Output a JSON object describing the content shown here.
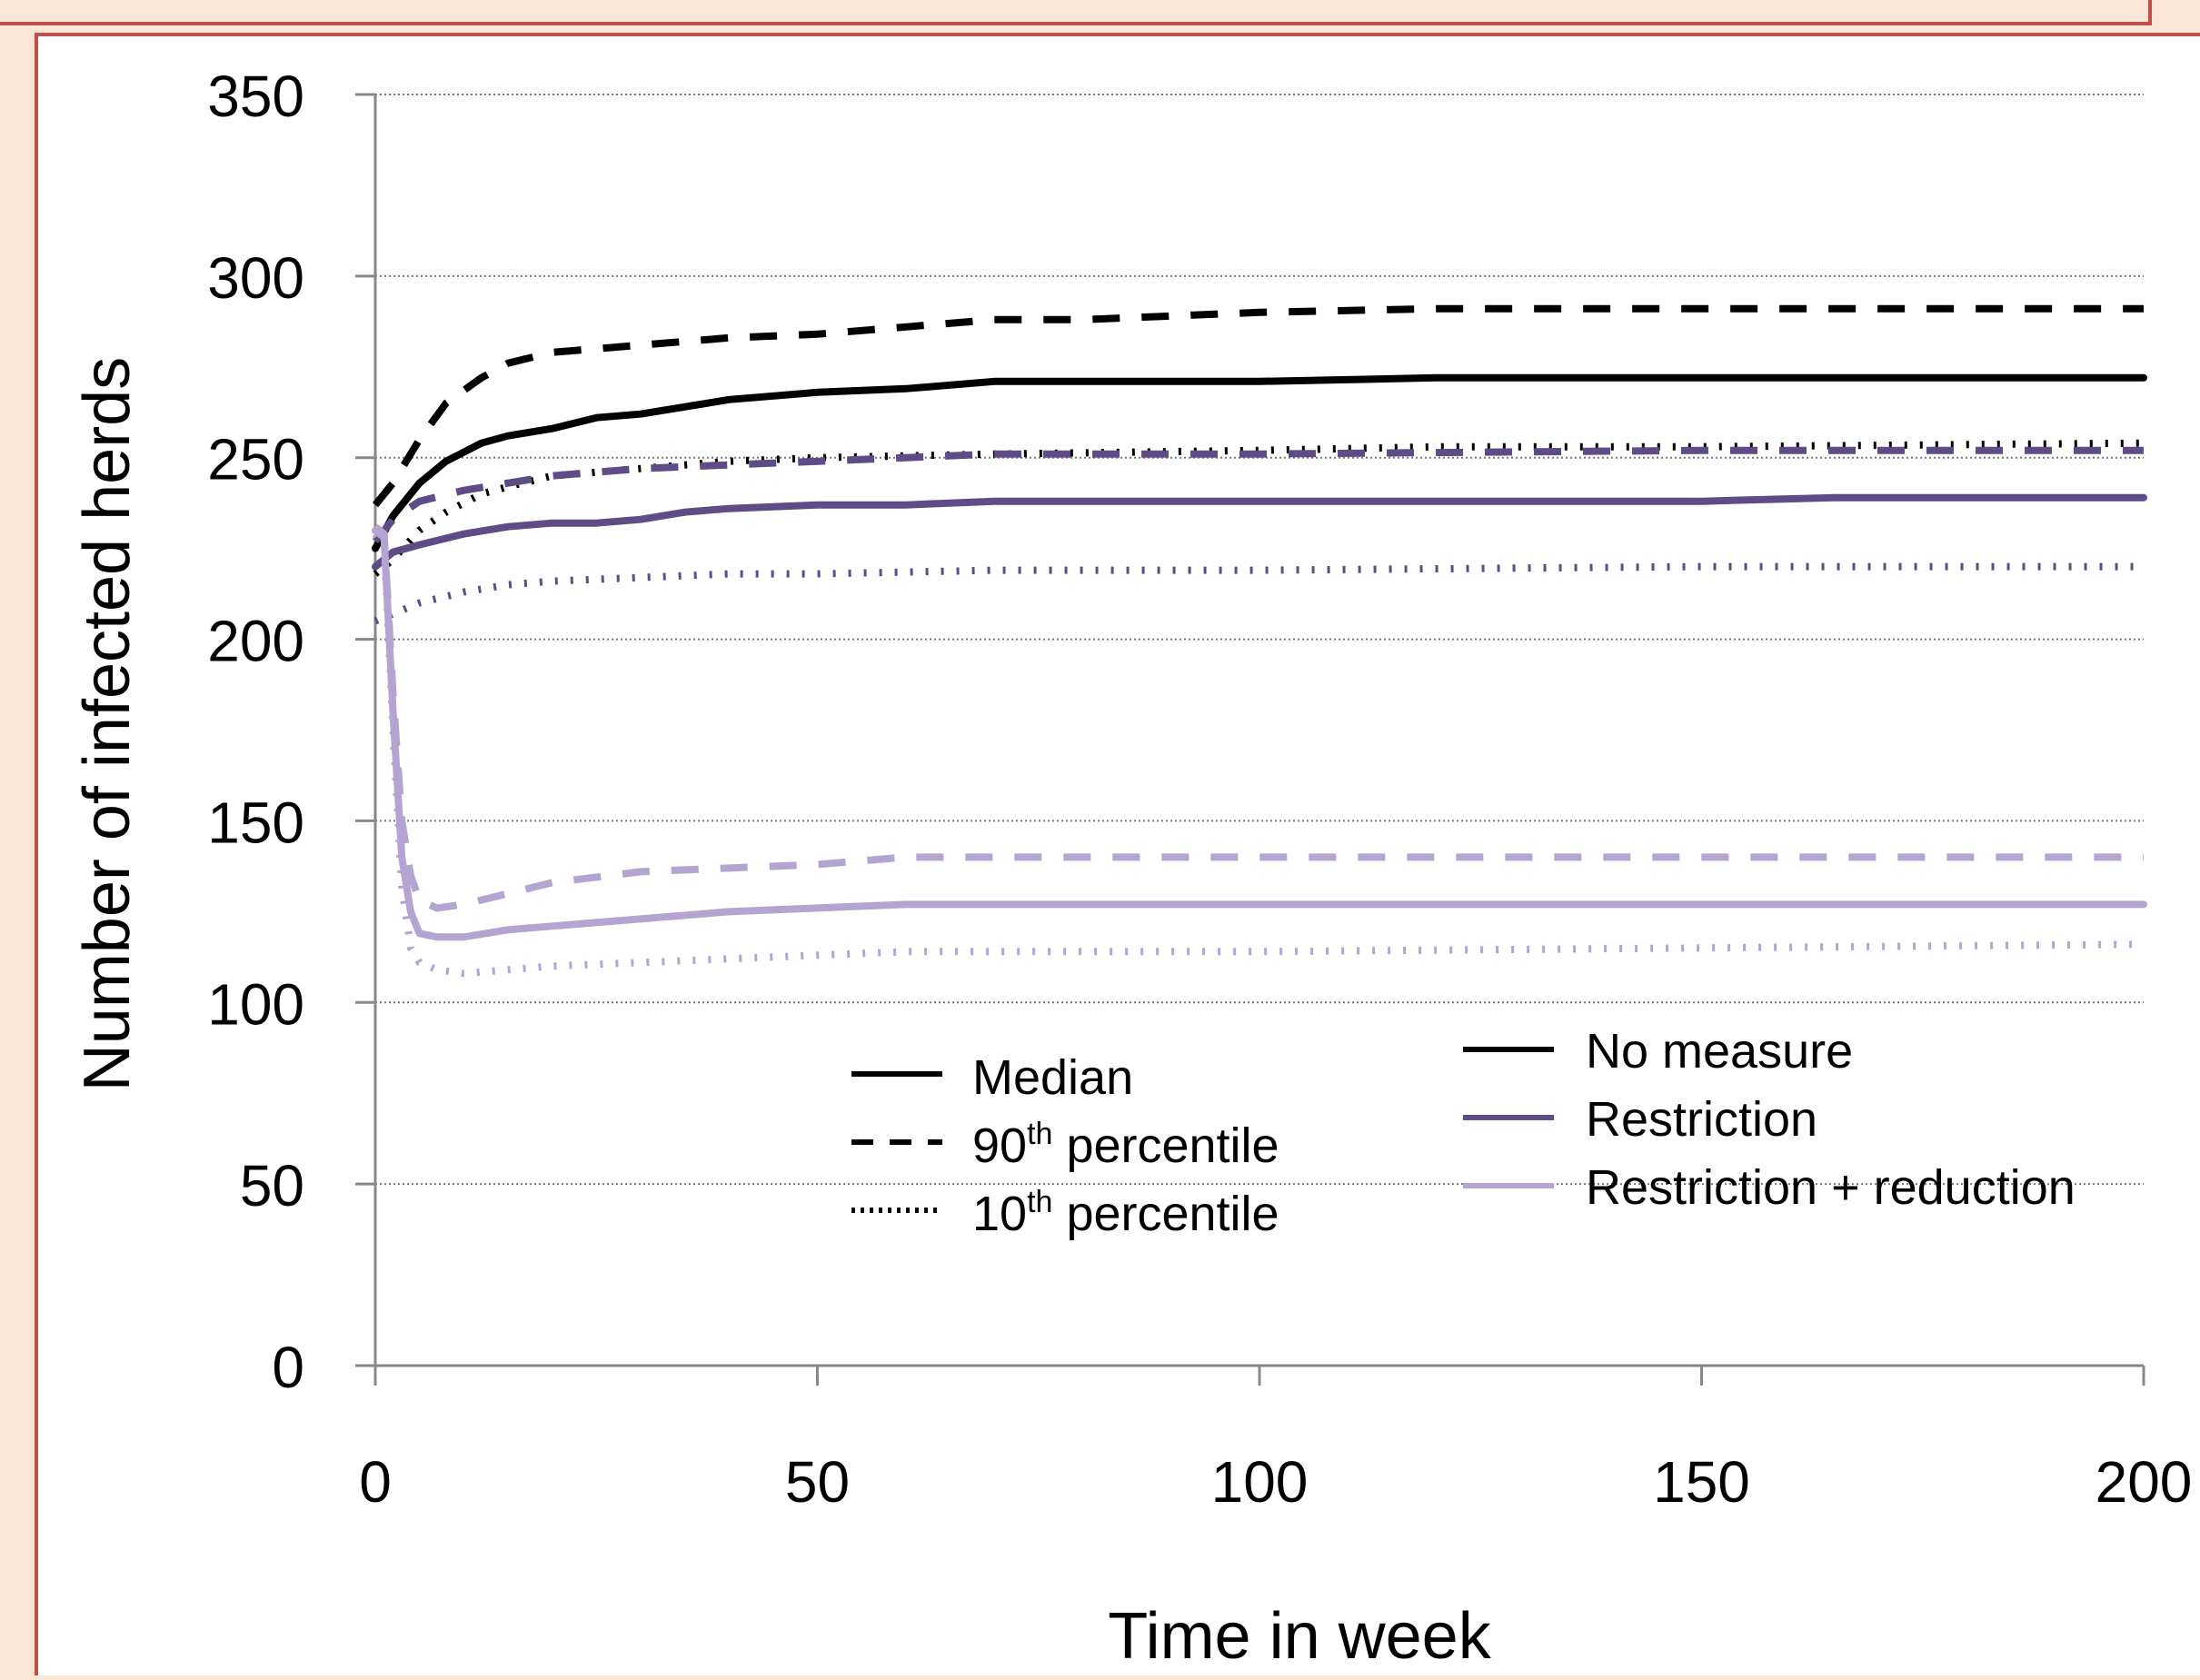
{
  "chart_data": {
    "type": "line",
    "title": "",
    "xlabel": "Time in week",
    "ylabel": "Number of infected herds",
    "xlim": [
      0,
      200
    ],
    "ylim": [
      0,
      350
    ],
    "x_ticks": [
      "0",
      "50",
      "100",
      "150",
      "200"
    ],
    "y_ticks": [
      "0",
      "50",
      "100",
      "150",
      "200",
      "250",
      "300",
      "350"
    ],
    "grid": "horizontal dotted",
    "colors": {
      "No measure": "#000000",
      "Restriction": "#5f4b86",
      "Restriction + reduction": "#b3a4d1"
    },
    "legend_statistic": [
      {
        "label": "Median",
        "sup": "",
        "rest": "",
        "dash": "solid"
      },
      {
        "label": "90",
        "sup": "th",
        "rest": " percentile",
        "dash": "dashed"
      },
      {
        "label": "10",
        "sup": "th",
        "rest": " percentile",
        "dash": "dotted"
      }
    ],
    "legend_scenario": [
      "No measure",
      "Restriction",
      "Restriction + reduction"
    ],
    "series": [
      {
        "scenario": "No measure",
        "statistic": "Median",
        "x": [
          0,
          2,
          5,
          8,
          12,
          15,
          20,
          25,
          30,
          35,
          40,
          50,
          60,
          70,
          80,
          100,
          120,
          150,
          200
        ],
        "y": [
          225,
          234,
          243,
          249,
          254,
          256,
          258,
          261,
          262,
          264,
          266,
          268,
          269,
          271,
          271,
          271,
          272,
          272,
          272
        ]
      },
      {
        "scenario": "No measure",
        "statistic": "90th percentile",
        "x": [
          0,
          2,
          5,
          8,
          12,
          15,
          20,
          25,
          30,
          35,
          40,
          50,
          60,
          70,
          80,
          90,
          100,
          120,
          150,
          200
        ],
        "y": [
          237,
          243,
          255,
          265,
          272,
          276,
          279,
          280,
          281,
          282,
          283,
          284,
          286,
          288,
          288,
          289,
          290,
          291,
          291,
          291
        ]
      },
      {
        "scenario": "No measure",
        "statistic": "10th percentile",
        "x": [
          0,
          2,
          5,
          8,
          12,
          15,
          20,
          30,
          40,
          50,
          70,
          100,
          120,
          150,
          200
        ],
        "y": [
          218,
          222,
          230,
          235,
          240,
          242,
          245,
          247,
          249,
          250,
          251,
          252,
          253,
          253,
          254
        ]
      },
      {
        "scenario": "Restriction",
        "statistic": "Median",
        "x": [
          0,
          2,
          5,
          10,
          15,
          20,
          25,
          30,
          35,
          40,
          50,
          60,
          70,
          100,
          150,
          165,
          200
        ],
        "y": [
          220,
          224,
          226,
          229,
          231,
          232,
          232,
          233,
          235,
          236,
          237,
          237,
          238,
          238,
          238,
          239,
          239
        ]
      },
      {
        "scenario": "Restriction",
        "statistic": "90th percentile",
        "x": [
          0,
          2,
          5,
          10,
          15,
          20,
          30,
          40,
          50,
          60,
          70,
          100,
          150,
          200
        ],
        "y": [
          227,
          233,
          238,
          241,
          243,
          245,
          247,
          248,
          249,
          250,
          251,
          251,
          252,
          252
        ]
      },
      {
        "scenario": "Restriction",
        "statistic": "10th percentile",
        "x": [
          0,
          2,
          5,
          10,
          15,
          20,
          30,
          40,
          50,
          70,
          100,
          150,
          200
        ],
        "y": [
          205,
          207,
          210,
          213,
          215,
          216,
          217,
          218,
          218,
          219,
          219,
          220,
          220
        ]
      },
      {
        "scenario": "Restriction + reduction",
        "statistic": "Median",
        "x": [
          0,
          1,
          2,
          3,
          4,
          5,
          7,
          10,
          15,
          20,
          30,
          40,
          50,
          60,
          100,
          150,
          200
        ],
        "y": [
          230,
          228,
          180,
          140,
          125,
          119,
          118,
          118,
          120,
          121,
          123,
          125,
          126,
          127,
          127,
          127,
          127
        ]
      },
      {
        "scenario": "Restriction + reduction",
        "statistic": "90th percentile",
        "x": [
          0,
          1,
          2,
          3,
          4,
          5,
          7,
          10,
          15,
          20,
          30,
          40,
          50,
          60,
          100,
          150,
          200
        ],
        "y": [
          231,
          229,
          185,
          150,
          135,
          128,
          126,
          127,
          130,
          133,
          136,
          137,
          138,
          140,
          140,
          140,
          140
        ]
      },
      {
        "scenario": "Restriction + reduction",
        "statistic": "10th percentile",
        "x": [
          0,
          1,
          2,
          3,
          4,
          5,
          7,
          10,
          15,
          20,
          30,
          40,
          50,
          60,
          100,
          150,
          200
        ],
        "y": [
          229,
          226,
          175,
          132,
          115,
          111,
          109,
          108,
          109,
          110,
          111,
          112,
          113,
          114,
          114,
          115,
          116
        ]
      }
    ]
  }
}
